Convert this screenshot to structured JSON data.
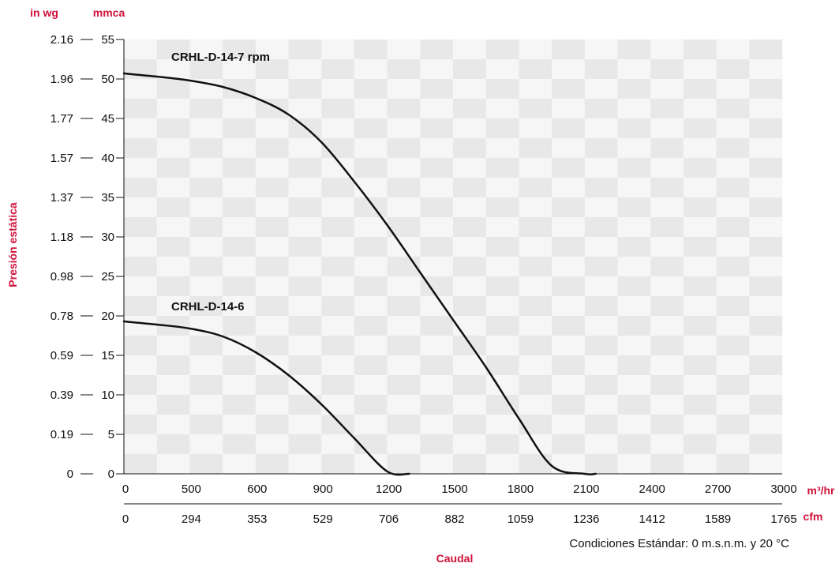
{
  "chart_data": {
    "type": "line",
    "title": "",
    "xlabel": "Caudal",
    "ylabel": "Presión estática",
    "x_unit_primary": "m³/hr",
    "x_unit_secondary": "cfm",
    "y_unit_left": "in wg",
    "y_unit_right": "mmca",
    "xlim": [
      0,
      3000
    ],
    "ylim": [
      0,
      55
    ],
    "x_tick_labels": [
      "0",
      "500",
      "600",
      "900",
      "1200",
      "1500",
      "1800",
      "2100",
      "2400",
      "2700",
      "3000"
    ],
    "x_secondary_tick_labels": [
      "0",
      "294",
      "353",
      "529",
      "706",
      "882",
      "1059",
      "1236",
      "1412",
      "1589",
      "1765"
    ],
    "y_ticks": [
      0,
      5,
      10,
      15,
      20,
      25,
      30,
      35,
      40,
      45,
      50,
      55
    ],
    "y_secondary_tick_labels": [
      "0",
      "0.19",
      "0.39",
      "0.59",
      "0.78",
      "0.98",
      "1.18",
      "1.37",
      "1.57",
      "1.77",
      "1.96",
      "2.16"
    ],
    "grid": true,
    "note": "Condiciones Estándar: 0 m.s.n.m. y 20 °C",
    "series": [
      {
        "name": "CRHL-D-14-7 rpm",
        "x": [
          0,
          150,
          300,
          450,
          600,
          750,
          900,
          1050,
          1200,
          1350,
          1500,
          1650,
          1800,
          1950,
          2100,
          2150
        ],
        "y": [
          50.7,
          50.3,
          49.8,
          49.0,
          47.6,
          45.5,
          42.0,
          37.0,
          31.5,
          25.5,
          19.5,
          13.5,
          7.0,
          1.0,
          0.0,
          0.0
        ]
      },
      {
        "name": "CRHL-D-14-6",
        "x": [
          0,
          150,
          300,
          450,
          600,
          750,
          900,
          1050,
          1200,
          1300
        ],
        "y": [
          19.3,
          18.9,
          18.4,
          17.4,
          15.4,
          12.5,
          8.8,
          4.5,
          0.3,
          0.0
        ]
      }
    ]
  }
}
